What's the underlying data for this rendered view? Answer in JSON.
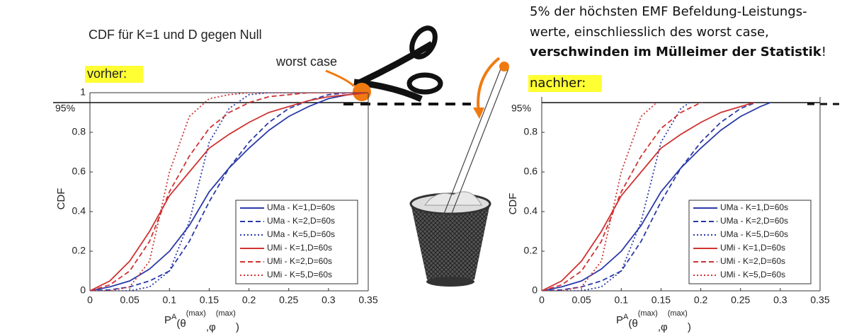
{
  "annotations": {
    "title": "CDF für K=1 und D gegen Null",
    "before": "vorher:",
    "worst_case": "worst case",
    "note": [
      "5% der höchsten EMF Befeldung-Leistungs-",
      "werte, einschliesslich des worst case,",
      "verschwinden im Mülleimer der Statistik",
      "!"
    ],
    "after": "nachher:"
  },
  "chart_data": [
    {
      "type": "line",
      "ylabel": "CDF",
      "xlabel": [
        "P",
        "A",
        "(θ",
        "(max)",
        ",φ",
        "(max)",
        ")"
      ],
      "x": [
        0,
        0.025,
        0.05,
        0.075,
        0.1,
        0.125,
        0.15,
        0.175,
        0.2,
        0.225,
        0.25,
        0.275,
        0.3,
        0.325,
        0.35
      ],
      "xlim": [
        0,
        0.35
      ],
      "xticks": [
        0,
        0.05,
        0.1,
        0.15,
        0.2,
        0.25,
        0.3,
        0.35
      ],
      "ylim": [
        0,
        1
      ],
      "yticks": [
        0,
        0.2,
        0.4,
        0.6,
        0.8,
        1
      ],
      "reference": {
        "value": 0.95,
        "label": "95%"
      },
      "series": [
        {
          "name": "UMa - K=1,D=60s",
          "color": "#2b3aa8",
          "dash": "solid",
          "values": [
            0,
            0.02,
            0.05,
            0.11,
            0.2,
            0.33,
            0.5,
            0.62,
            0.72,
            0.81,
            0.88,
            0.93,
            0.97,
            0.99,
            1
          ]
        },
        {
          "name": "UMa - K=2,D=60s",
          "color": "#2b3aa8",
          "dash": "dashed",
          "values": [
            0,
            0.005,
            0.02,
            0.05,
            0.1,
            0.25,
            0.45,
            0.62,
            0.75,
            0.85,
            0.92,
            0.96,
            0.99,
            1,
            1
          ]
        },
        {
          "name": "UMa - K=5,D=60s",
          "color": "#2b3aa8",
          "dash": "dotted",
          "values": [
            0,
            0,
            0,
            0.02,
            0.1,
            0.35,
            0.75,
            0.92,
            0.99,
            1,
            1,
            1,
            1,
            1,
            1
          ]
        },
        {
          "name": "UMi - K=1,D=60s",
          "color": "#d03232",
          "dash": "solid",
          "values": [
            0,
            0.05,
            0.15,
            0.3,
            0.48,
            0.6,
            0.72,
            0.79,
            0.85,
            0.9,
            0.93,
            0.96,
            0.98,
            0.99,
            1
          ]
        },
        {
          "name": "UMi - K=2,D=60s",
          "color": "#d03232",
          "dash": "dashed",
          "values": [
            0,
            0.03,
            0.1,
            0.25,
            0.5,
            0.68,
            0.82,
            0.9,
            0.95,
            0.98,
            0.99,
            1,
            1,
            1,
            1
          ]
        },
        {
          "name": "UMi - K=5,D=60s",
          "color": "#d03232",
          "dash": "dotted",
          "values": [
            0,
            0,
            0.02,
            0.15,
            0.6,
            0.88,
            0.97,
            0.99,
            1,
            1,
            1,
            1,
            1,
            1,
            1
          ]
        }
      ]
    },
    {
      "type": "line",
      "ylabel": "CDF",
      "xlabel": [
        "P",
        "A",
        "(θ",
        "(max)",
        ",φ",
        "(max)",
        ")"
      ],
      "x": [
        0,
        0.025,
        0.05,
        0.075,
        0.1,
        0.125,
        0.15,
        0.175,
        0.2,
        0.225,
        0.25,
        0.275,
        0.3,
        0.325,
        0.35
      ],
      "xlim": [
        0,
        0.35
      ],
      "xticks": [
        0,
        0.05,
        0.1,
        0.15,
        0.2,
        0.25,
        0.3,
        0.35
      ],
      "ylim": [
        0,
        0.95
      ],
      "yticks": [
        0,
        0.2,
        0.4,
        0.6,
        0.8
      ],
      "reference": {
        "value": 0.95,
        "label": "95%"
      },
      "series": [
        {
          "name": "UMa - K=1,D=60s",
          "color": "#2b3aa8",
          "dash": "solid",
          "values": [
            0,
            0.02,
            0.05,
            0.11,
            0.2,
            0.33,
            0.5,
            0.62,
            0.72,
            0.81,
            0.88,
            0.93,
            0.97,
            0.99,
            1
          ]
        },
        {
          "name": "UMa - K=2,D=60s",
          "color": "#2b3aa8",
          "dash": "dashed",
          "values": [
            0,
            0.005,
            0.02,
            0.05,
            0.1,
            0.25,
            0.45,
            0.62,
            0.75,
            0.85,
            0.92,
            0.96,
            0.99,
            1,
            1
          ]
        },
        {
          "name": "UMa - K=5,D=60s",
          "color": "#2b3aa8",
          "dash": "dotted",
          "values": [
            0,
            0,
            0,
            0.02,
            0.1,
            0.35,
            0.75,
            0.92,
            0.99,
            1,
            1,
            1,
            1,
            1,
            1
          ]
        },
        {
          "name": "UMi - K=1,D=60s",
          "color": "#d03232",
          "dash": "solid",
          "values": [
            0,
            0.05,
            0.15,
            0.3,
            0.48,
            0.6,
            0.72,
            0.79,
            0.85,
            0.9,
            0.93,
            0.96,
            0.98,
            0.99,
            1
          ]
        },
        {
          "name": "UMi - K=2,D=60s",
          "color": "#d03232",
          "dash": "dashed",
          "values": [
            0,
            0.03,
            0.1,
            0.25,
            0.5,
            0.68,
            0.82,
            0.9,
            0.95,
            0.98,
            0.99,
            1,
            1,
            1,
            1
          ]
        },
        {
          "name": "UMi - K=5,D=60s",
          "color": "#d03232",
          "dash": "dotted",
          "values": [
            0,
            0,
            0.02,
            0.15,
            0.6,
            0.88,
            0.97,
            0.99,
            1,
            1,
            1,
            1,
            1,
            1,
            1
          ]
        }
      ]
    }
  ]
}
